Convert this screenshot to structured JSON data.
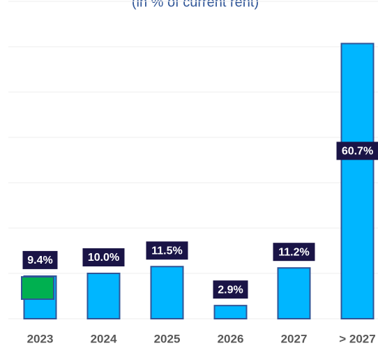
{
  "chart_data": {
    "type": "bar",
    "subtitle": "(in % of current rent)",
    "categories": [
      "2023",
      "2024",
      "2025",
      "2026",
      "2027",
      "> 2027"
    ],
    "values": [
      9.4,
      10.0,
      11.5,
      2.9,
      11.2,
      60.7
    ],
    "value_labels": [
      "9.4%",
      "10.0%",
      "11.5%",
      "2.9%",
      "11.2%",
      "60.7%"
    ],
    "color": "#00b6ff",
    "ylim": [
      0,
      70
    ],
    "yticks": [
      0,
      10,
      20,
      30,
      40,
      50,
      60,
      70
    ],
    "grid": true
  }
}
